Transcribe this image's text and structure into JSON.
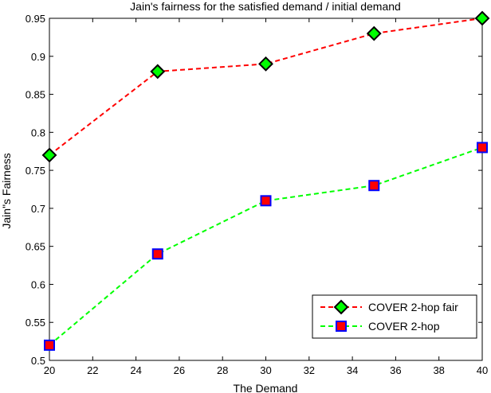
{
  "chart_data": {
    "type": "line",
    "title": "Jain's fairness for the satisfied demand / initial demand",
    "xlabel": "The Demand",
    "ylabel": "Jain\"s Fairness",
    "xlim": [
      20,
      40
    ],
    "ylim": [
      0.5,
      0.95
    ],
    "xticks": [
      "20",
      "22",
      "24",
      "26",
      "28",
      "30",
      "32",
      "34",
      "36",
      "38",
      "40"
    ],
    "yticks": [
      "0.5",
      "0.55",
      "0.6",
      "0.65",
      "0.7",
      "0.75",
      "0.8",
      "0.85",
      "0.9",
      "0.95"
    ],
    "grid": false,
    "legend_position": "lower-right",
    "x": [
      20,
      25,
      30,
      35,
      40
    ],
    "series": [
      {
        "name": "COVER 2-hop fair",
        "values": [
          0.77,
          0.88,
          0.89,
          0.93,
          0.95
        ],
        "line_color": "#ff0000",
        "marker": "diamond",
        "marker_face": "#00ff00",
        "marker_edge": "#000000"
      },
      {
        "name": "COVER 2-hop",
        "values": [
          0.52,
          0.64,
          0.71,
          0.73,
          0.78
        ],
        "line_color": "#00ff00",
        "marker": "square",
        "marker_face": "#ff0000",
        "marker_edge": "#0000ff"
      }
    ]
  }
}
